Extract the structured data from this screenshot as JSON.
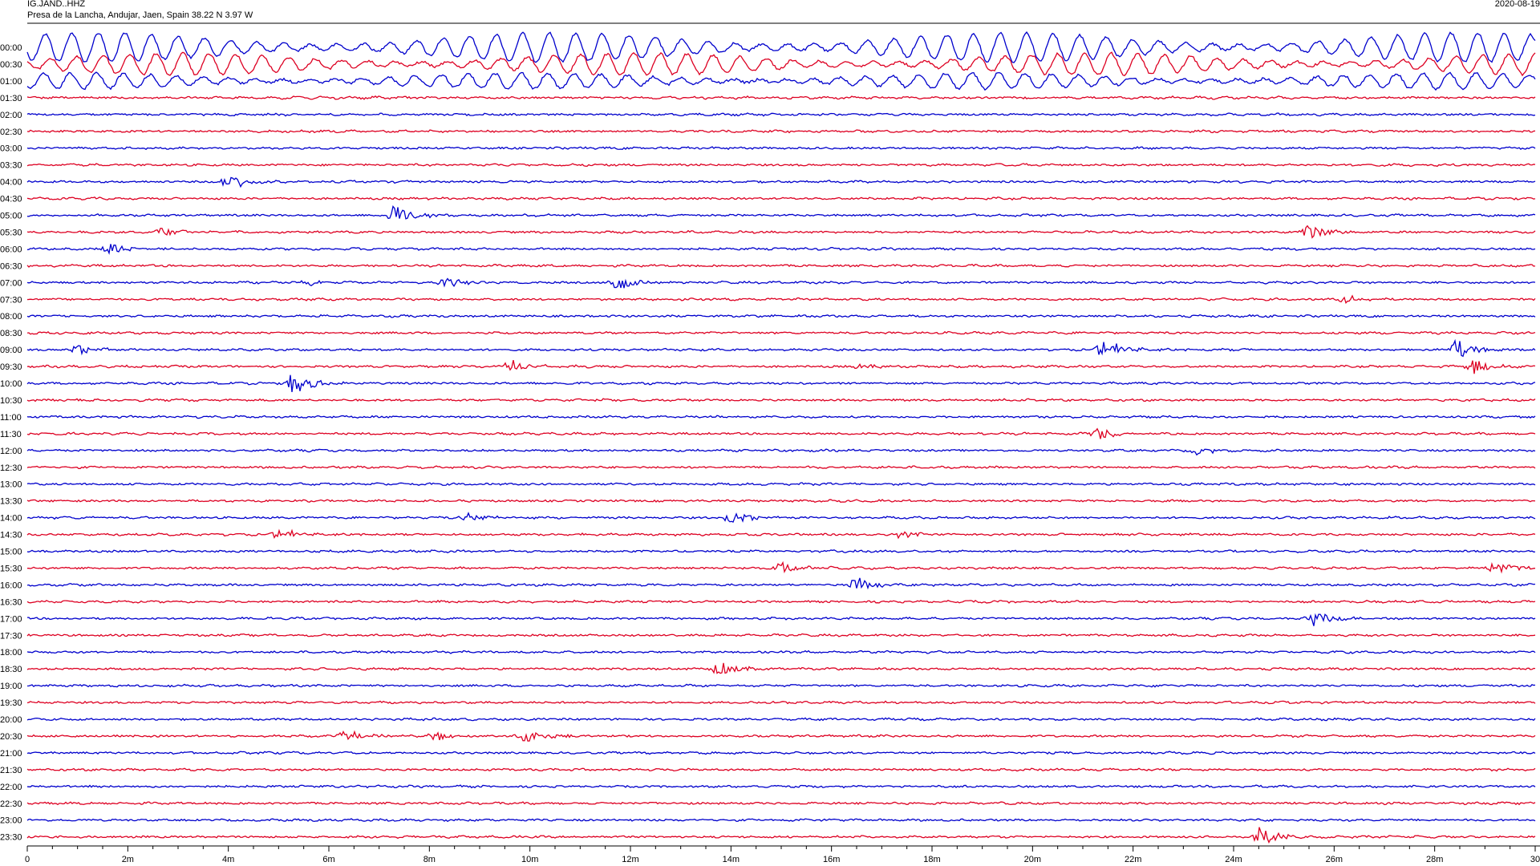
{
  "header": {
    "station": "IG.JAND..HHZ",
    "location": "Presa de la Lancha, Andujar, Jaen, Spain  38.22 N 3.97 W",
    "date": "2020-08-19"
  },
  "chart_data": {
    "type": "line",
    "title": "",
    "xlabel": "",
    "ylabel": "",
    "x_unit": "minutes",
    "xlim": [
      0,
      30
    ],
    "x_ticks": [
      0,
      2,
      4,
      6,
      8,
      10,
      12,
      14,
      16,
      18,
      20,
      22,
      24,
      26,
      28,
      30
    ],
    "x_tick_labels": [
      "0",
      "2m",
      "4m",
      "6m",
      "8m",
      "10m",
      "12m",
      "14m",
      "16m",
      "18m",
      "20m",
      "22m",
      "24m",
      "26m",
      "28m",
      "30"
    ],
    "rows": [
      "00:00",
      "00:30",
      "01:00",
      "01:30",
      "02:00",
      "02:30",
      "03:00",
      "03:30",
      "04:00",
      "04:30",
      "05:00",
      "05:30",
      "06:00",
      "06:30",
      "07:00",
      "07:30",
      "08:00",
      "08:30",
      "09:00",
      "09:30",
      "10:00",
      "10:30",
      "11:00",
      "11:30",
      "12:00",
      "12:30",
      "13:00",
      "13:30",
      "14:00",
      "14:30",
      "15:00",
      "15:30",
      "16:00",
      "16:30",
      "17:00",
      "17:30",
      "18:00",
      "18:30",
      "19:00",
      "19:30",
      "20:00",
      "20:30",
      "21:00",
      "21:30",
      "22:00",
      "22:30",
      "23:00",
      "23:30"
    ],
    "colors": [
      "#0000cc",
      "#dd0022"
    ],
    "noise_level": [
      1.0,
      0.75,
      0.55,
      0.35,
      0.28,
      0.25,
      0.22,
      0.22,
      0.22,
      0.22,
      0.22,
      0.22,
      0.22,
      0.22,
      0.22,
      0.22,
      0.22,
      0.22,
      0.22,
      0.22,
      0.22,
      0.22,
      0.22,
      0.22,
      0.22,
      0.22,
      0.22,
      0.22,
      0.22,
      0.22,
      0.22,
      0.22,
      0.22,
      0.22,
      0.22,
      0.22,
      0.22,
      0.22,
      0.22,
      0.22,
      0.22,
      0.22,
      0.22,
      0.22,
      0.22,
      0.22,
      0.22,
      0.22
    ],
    "events": [
      {
        "row": 8,
        "minute": 4.0,
        "amplitude": 1.0
      },
      {
        "row": 10,
        "minute": 7.3,
        "amplitude": 1.2
      },
      {
        "row": 11,
        "minute": 2.7,
        "amplitude": 0.5
      },
      {
        "row": 11,
        "minute": 25.5,
        "amplitude": 0.9
      },
      {
        "row": 12,
        "minute": 1.6,
        "amplitude": 0.7
      },
      {
        "row": 14,
        "minute": 5.6,
        "amplitude": 0.35
      },
      {
        "row": 14,
        "minute": 8.3,
        "amplitude": 0.6
      },
      {
        "row": 14,
        "minute": 11.7,
        "amplitude": 1.0
      },
      {
        "row": 15,
        "minute": 26.2,
        "amplitude": 0.45
      },
      {
        "row": 18,
        "minute": 1.0,
        "amplitude": 0.5
      },
      {
        "row": 18,
        "minute": 21.4,
        "amplitude": 1.1
      },
      {
        "row": 18,
        "minute": 28.4,
        "amplitude": 1.1
      },
      {
        "row": 19,
        "minute": 9.6,
        "amplitude": 0.8
      },
      {
        "row": 19,
        "minute": 16.5,
        "amplitude": 0.3
      },
      {
        "row": 19,
        "minute": 28.8,
        "amplitude": 0.8
      },
      {
        "row": 20,
        "minute": 5.3,
        "amplitude": 1.2
      },
      {
        "row": 23,
        "minute": 21.3,
        "amplitude": 0.8
      },
      {
        "row": 24,
        "minute": 23.3,
        "amplitude": 0.5
      },
      {
        "row": 28,
        "minute": 8.7,
        "amplitude": 0.5
      },
      {
        "row": 28,
        "minute": 14.0,
        "amplitude": 0.7
      },
      {
        "row": 29,
        "minute": 5.0,
        "amplitude": 0.6
      },
      {
        "row": 29,
        "minute": 17.4,
        "amplitude": 0.4
      },
      {
        "row": 31,
        "minute": 15.0,
        "amplitude": 0.6
      },
      {
        "row": 31,
        "minute": 29.2,
        "amplitude": 0.8
      },
      {
        "row": 32,
        "minute": 16.5,
        "amplitude": 0.8
      },
      {
        "row": 34,
        "minute": 25.6,
        "amplitude": 0.8
      },
      {
        "row": 37,
        "minute": 13.7,
        "amplitude": 0.8
      },
      {
        "row": 41,
        "minute": 6.3,
        "amplitude": 0.6
      },
      {
        "row": 41,
        "minute": 8.1,
        "amplitude": 0.5
      },
      {
        "row": 41,
        "minute": 9.9,
        "amplitude": 0.8
      },
      {
        "row": 47,
        "minute": 24.5,
        "amplitude": 1.0
      }
    ]
  }
}
